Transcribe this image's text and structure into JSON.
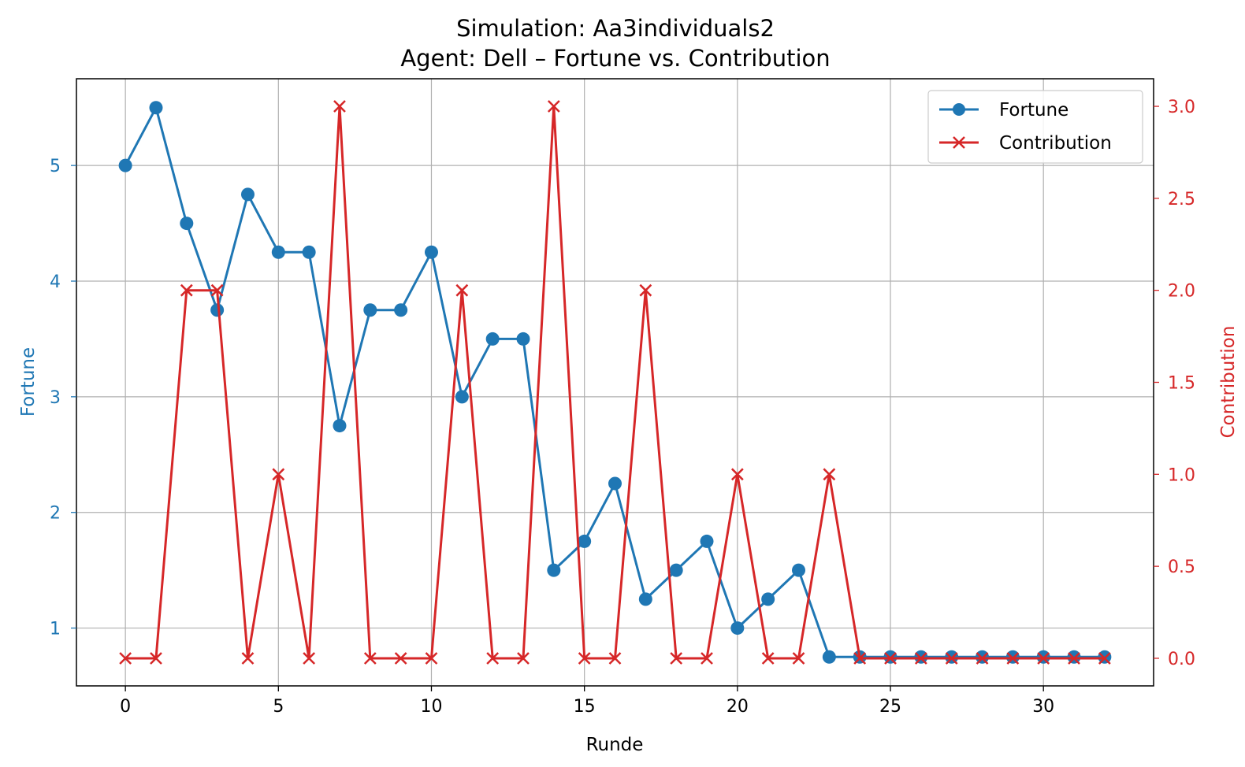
{
  "chart_data": {
    "type": "line",
    "title_line1": "Simulation: Aa3individuals2",
    "title_line2": "Agent: Dell – Fortune vs. Contribution",
    "xlabel": "Runde",
    "ylabel_left": "Fortune",
    "ylabel_right": "Contribution",
    "xlim": [
      -1.6,
      33.6
    ],
    "ylim_left": [
      0.5,
      5.75
    ],
    "ylim_right": [
      -0.15,
      3.15
    ],
    "x_ticks": [
      0,
      5,
      10,
      15,
      20,
      25,
      30
    ],
    "y_left_ticks": [
      1,
      2,
      3,
      4,
      5
    ],
    "y_right_ticks": [
      "0.0",
      "0.5",
      "1.0",
      "1.5",
      "2.0",
      "2.5",
      "3.0"
    ],
    "grid": true,
    "legend_position": "top-right",
    "x": [
      0,
      1,
      2,
      3,
      4,
      5,
      6,
      7,
      8,
      9,
      10,
      11,
      12,
      13,
      14,
      15,
      16,
      17,
      18,
      19,
      20,
      21,
      22,
      23,
      24,
      25,
      26,
      27,
      28,
      29,
      30,
      31,
      32
    ],
    "series": [
      {
        "name": "Fortune",
        "axis": "left",
        "color": "#1f77b4",
        "marker": "circle",
        "values": [
          5.0,
          5.5,
          4.5,
          3.75,
          4.75,
          4.25,
          4.25,
          2.75,
          3.75,
          3.75,
          4.25,
          3.0,
          3.5,
          3.5,
          1.5,
          1.75,
          2.25,
          1.25,
          1.5,
          1.75,
          1.0,
          1.25,
          1.5,
          0.75,
          0.75,
          0.75,
          0.75,
          0.75,
          0.75,
          0.75,
          0.75,
          0.75,
          0.75
        ]
      },
      {
        "name": "Contribution",
        "axis": "right",
        "color": "#d62728",
        "marker": "x",
        "values": [
          0,
          0,
          2,
          2,
          0,
          1,
          0,
          3,
          0,
          0,
          0,
          2,
          0,
          0,
          3,
          0,
          0,
          2,
          0,
          0,
          1,
          0,
          0,
          1,
          0,
          0,
          0,
          0,
          0,
          0,
          0,
          0,
          0
        ]
      }
    ]
  }
}
